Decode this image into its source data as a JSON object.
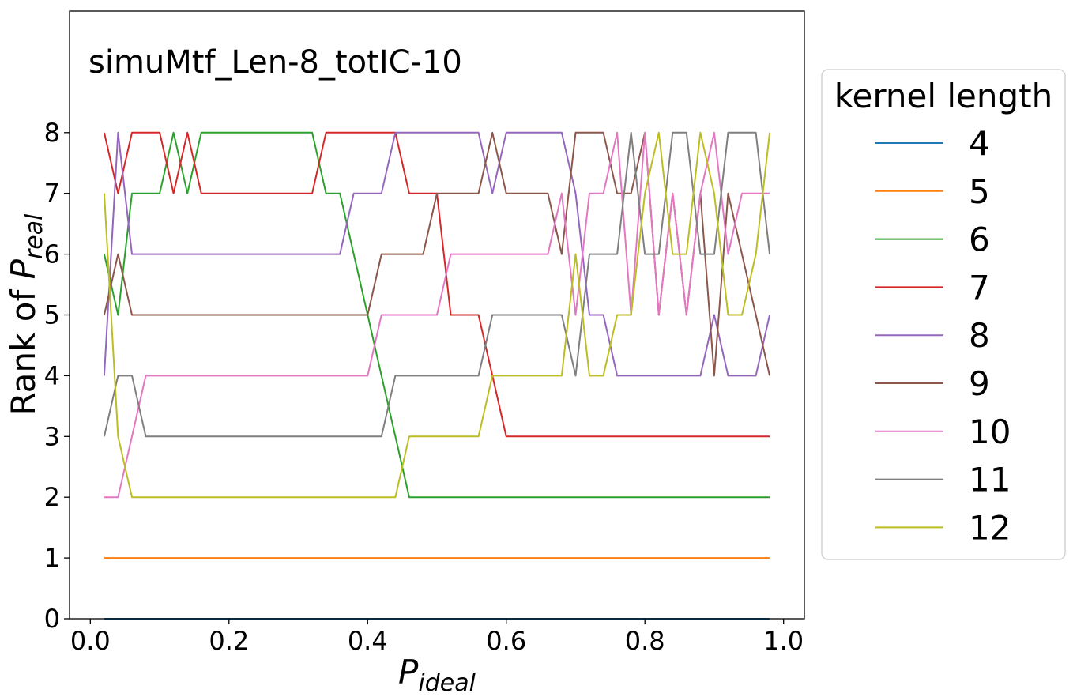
{
  "chart_data": {
    "type": "line",
    "annotation": "simuMtf_Len-8_totIC-10",
    "xlabel": {
      "main": "P",
      "sub": "ideal"
    },
    "ylabel": {
      "main": "Rank of ",
      "var": "P",
      "sub": "real"
    },
    "xlim": [
      -0.03,
      1.03
    ],
    "ylim": [
      0,
      10
    ],
    "xticks": [
      0.0,
      0.2,
      0.4,
      0.6,
      0.8,
      1.0
    ],
    "xtick_labels": [
      "0.0",
      "0.2",
      "0.4",
      "0.6",
      "0.8",
      "1.0"
    ],
    "yticks": [
      0,
      1,
      2,
      3,
      4,
      5,
      6,
      7,
      8
    ],
    "ytick_labels": [
      "0",
      "1",
      "2",
      "3",
      "4",
      "5",
      "6",
      "7",
      "8"
    ],
    "grid": false,
    "legend": {
      "title": "kernel length",
      "placement": "outside-right"
    },
    "x": [
      0.02,
      0.04,
      0.06,
      0.08,
      0.1,
      0.12,
      0.14,
      0.16,
      0.18,
      0.2,
      0.22,
      0.24,
      0.26,
      0.28,
      0.3,
      0.32,
      0.34,
      0.36,
      0.38,
      0.4,
      0.42,
      0.44,
      0.46,
      0.48,
      0.5,
      0.52,
      0.54,
      0.56,
      0.58,
      0.6,
      0.62,
      0.64,
      0.66,
      0.68,
      0.7,
      0.72,
      0.74,
      0.76,
      0.78,
      0.8,
      0.82,
      0.84,
      0.86,
      0.88,
      0.9,
      0.92,
      0.94,
      0.96,
      0.98
    ],
    "series": [
      {
        "name": "4",
        "color": "#1f77b4",
        "values": [
          0,
          0,
          0,
          0,
          0,
          0,
          0,
          0,
          0,
          0,
          0,
          0,
          0,
          0,
          0,
          0,
          0,
          0,
          0,
          0,
          0,
          0,
          0,
          0,
          0,
          0,
          0,
          0,
          0,
          0,
          0,
          0,
          0,
          0,
          0,
          0,
          0,
          0,
          0,
          0,
          0,
          0,
          0,
          0,
          0,
          0,
          0,
          0,
          0
        ]
      },
      {
        "name": "5",
        "color": "#ff7f0e",
        "values": [
          1,
          1,
          1,
          1,
          1,
          1,
          1,
          1,
          1,
          1,
          1,
          1,
          1,
          1,
          1,
          1,
          1,
          1,
          1,
          1,
          1,
          1,
          1,
          1,
          1,
          1,
          1,
          1,
          1,
          1,
          1,
          1,
          1,
          1,
          1,
          1,
          1,
          1,
          1,
          1,
          1,
          1,
          1,
          1,
          1,
          1,
          1,
          1,
          1
        ]
      },
      {
        "name": "6",
        "color": "#2ca02c",
        "values": [
          6,
          5,
          7,
          7,
          7,
          8,
          7,
          8,
          8,
          8,
          8,
          8,
          8,
          8,
          8,
          8,
          7,
          7,
          6,
          5,
          4,
          3,
          2,
          2,
          2,
          2,
          2,
          2,
          2,
          2,
          2,
          2,
          2,
          2,
          2,
          2,
          2,
          2,
          2,
          2,
          2,
          2,
          2,
          2,
          2,
          2,
          2,
          2,
          2
        ]
      },
      {
        "name": "7",
        "color": "#d62728",
        "values": [
          8,
          7,
          8,
          8,
          8,
          7,
          8,
          7,
          7,
          7,
          7,
          7,
          7,
          7,
          7,
          7,
          8,
          8,
          8,
          8,
          8,
          8,
          7,
          7,
          7,
          5,
          5,
          5,
          4,
          3,
          3,
          3,
          3,
          3,
          3,
          3,
          3,
          3,
          3,
          3,
          3,
          3,
          3,
          3,
          3,
          3,
          3,
          3,
          3
        ]
      },
      {
        "name": "8",
        "color": "#9467bd",
        "values": [
          4,
          8,
          6,
          6,
          6,
          6,
          6,
          6,
          6,
          6,
          6,
          6,
          6,
          6,
          6,
          6,
          6,
          6,
          7,
          7,
          7,
          8,
          8,
          8,
          8,
          8,
          8,
          8,
          7,
          8,
          8,
          8,
          8,
          8,
          7,
          5,
          5,
          4,
          4,
          4,
          4,
          4,
          4,
          4,
          5,
          4,
          4,
          4,
          5
        ]
      },
      {
        "name": "9",
        "color": "#8c564b",
        "values": [
          5,
          6,
          5,
          5,
          5,
          5,
          5,
          5,
          5,
          5,
          5,
          5,
          5,
          5,
          5,
          5,
          5,
          5,
          5,
          5,
          6,
          6,
          6,
          6,
          7,
          7,
          7,
          7,
          8,
          7,
          7,
          7,
          7,
          6,
          8,
          8,
          8,
          7,
          7,
          8,
          5,
          7,
          5,
          7,
          4,
          7,
          6,
          5,
          4
        ]
      },
      {
        "name": "10",
        "color": "#e377c2",
        "values": [
          2,
          2,
          3,
          4,
          4,
          4,
          4,
          4,
          4,
          4,
          4,
          4,
          4,
          4,
          4,
          4,
          4,
          4,
          4,
          4,
          5,
          5,
          5,
          5,
          5,
          6,
          6,
          6,
          6,
          6,
          6,
          6,
          6,
          7,
          5,
          7,
          7,
          8,
          5,
          8,
          5,
          7,
          5,
          7,
          8,
          6,
          7,
          7,
          7
        ]
      },
      {
        "name": "11",
        "color": "#7f7f7f",
        "values": [
          3,
          4,
          4,
          3,
          3,
          3,
          3,
          3,
          3,
          3,
          3,
          3,
          3,
          3,
          3,
          3,
          3,
          3,
          3,
          3,
          3,
          4,
          4,
          4,
          4,
          4,
          4,
          4,
          5,
          5,
          5,
          5,
          5,
          5,
          4,
          6,
          6,
          6,
          8,
          6,
          6,
          8,
          8,
          6,
          6,
          8,
          8,
          8,
          6
        ]
      },
      {
        "name": "12",
        "color": "#bcbd22",
        "values": [
          7,
          3,
          2,
          2,
          2,
          2,
          2,
          2,
          2,
          2,
          2,
          2,
          2,
          2,
          2,
          2,
          2,
          2,
          2,
          2,
          2,
          2,
          3,
          3,
          3,
          3,
          3,
          3,
          4,
          4,
          4,
          4,
          4,
          4,
          6,
          4,
          4,
          5,
          5,
          7,
          8,
          6,
          6,
          8,
          7,
          5,
          5,
          6,
          8
        ]
      }
    ]
  }
}
